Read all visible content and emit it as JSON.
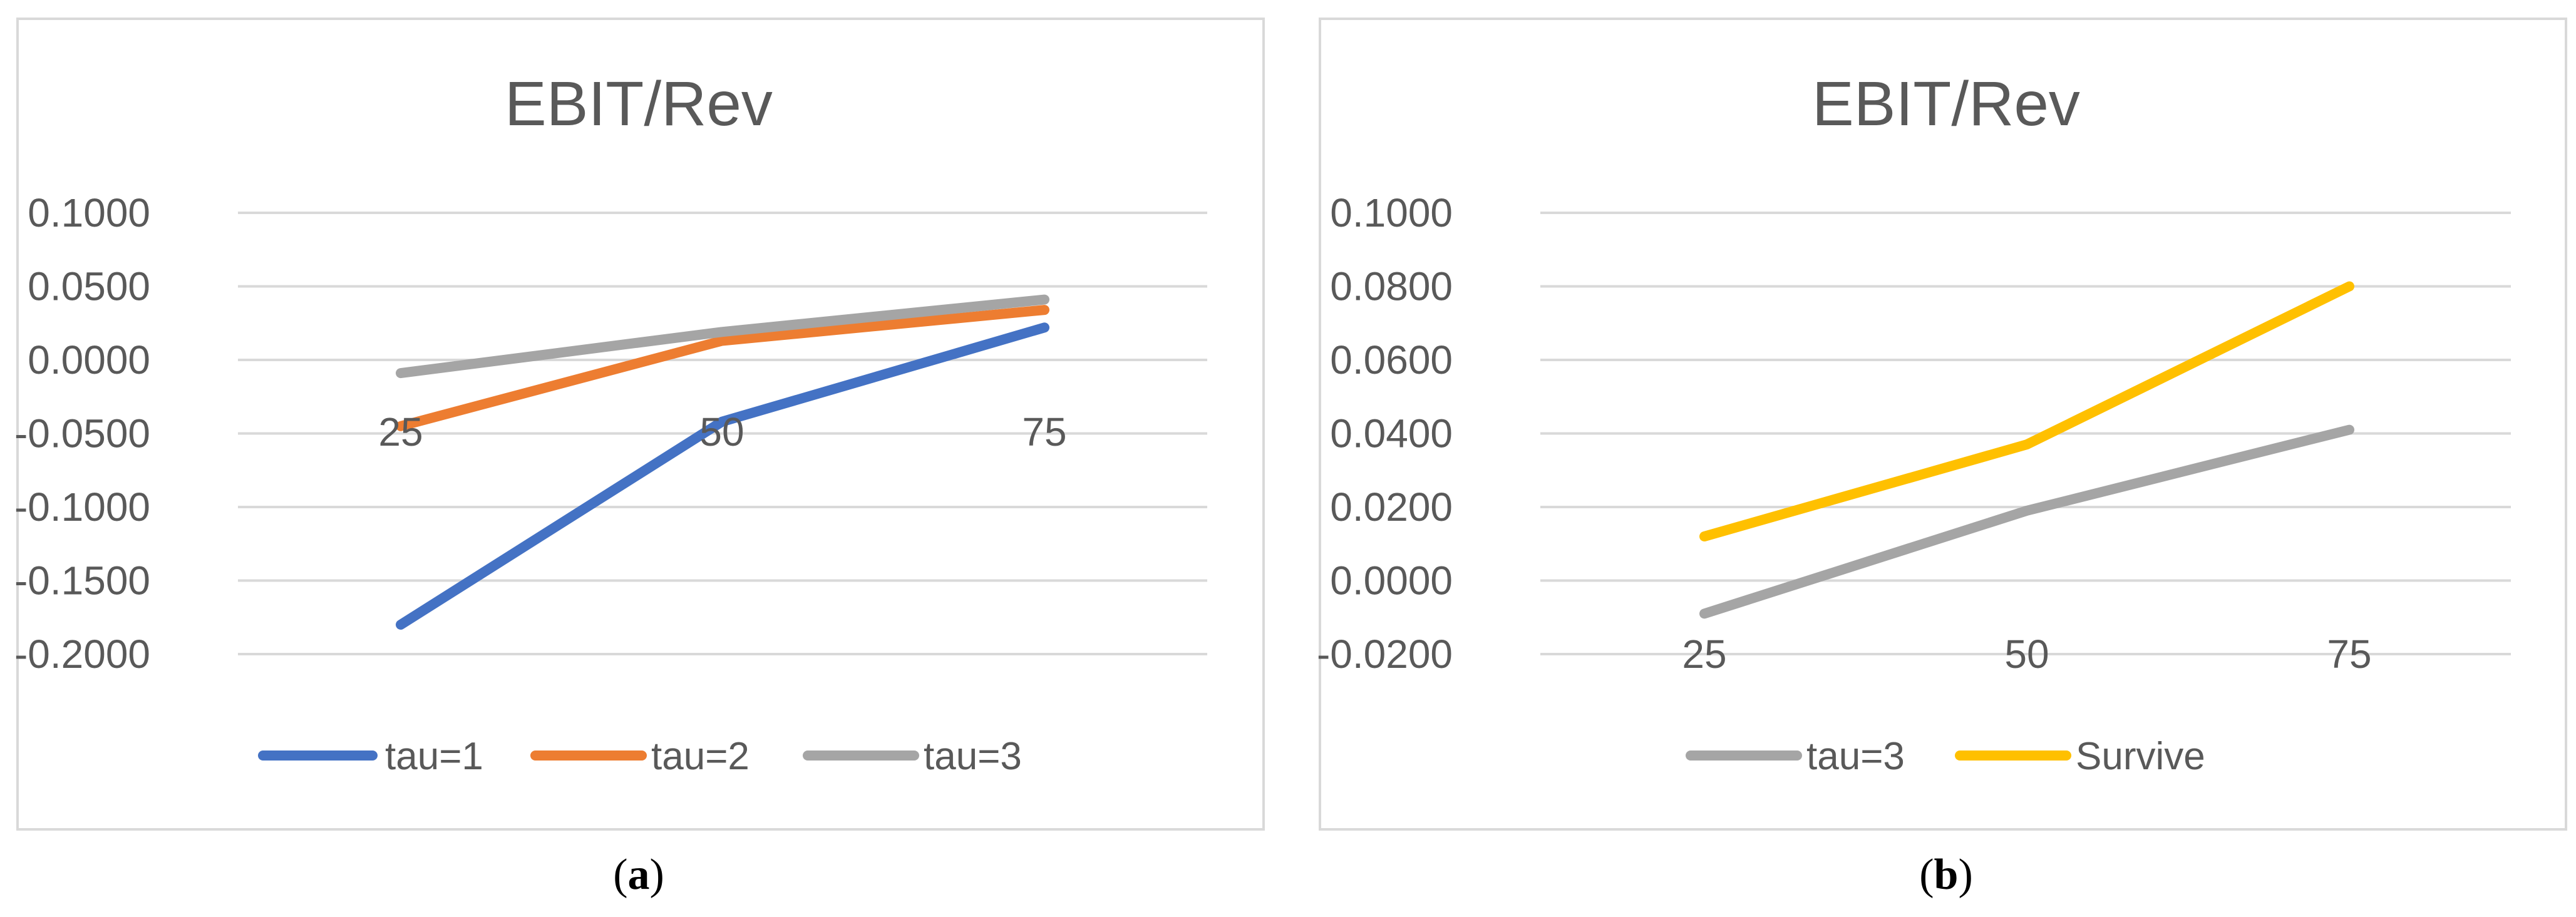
{
  "chart_data": [
    {
      "type": "line",
      "panel_label": "a",
      "title": "EBIT/Rev",
      "xlabel": "",
      "ylabel": "",
      "categories": [
        "25",
        "50",
        "75"
      ],
      "yticks": [
        "0.1000",
        "0.0500",
        "0.0000",
        "-0.0500",
        "-0.1000",
        "-0.1500",
        "-0.2000"
      ],
      "ylim": [
        -0.2,
        0.1
      ],
      "grid": true,
      "legend_position": "bottom",
      "series": [
        {
          "name": "tau=1",
          "color": "#4472C4",
          "values": [
            -0.18,
            -0.042,
            0.022
          ]
        },
        {
          "name": "tau=2",
          "color": "#ED7D31",
          "values": [
            -0.045,
            0.013,
            0.034
          ]
        },
        {
          "name": "tau=3",
          "color": "#A5A5A5",
          "values": [
            -0.009,
            0.019,
            0.041
          ]
        }
      ]
    },
    {
      "type": "line",
      "panel_label": "b",
      "title": "EBIT/Rev",
      "xlabel": "",
      "ylabel": "",
      "categories": [
        "25",
        "50",
        "75"
      ],
      "yticks": [
        "0.1000",
        "0.0800",
        "0.0600",
        "0.0400",
        "0.0200",
        "0.0000",
        "-0.0200"
      ],
      "ylim": [
        -0.02,
        0.1
      ],
      "grid": true,
      "legend_position": "bottom",
      "series": [
        {
          "name": "tau=3",
          "color": "#A5A5A5",
          "values": [
            -0.009,
            0.019,
            0.041
          ]
        },
        {
          "name": "Survive",
          "color": "#FFC000",
          "values": [
            0.012,
            0.037,
            0.08
          ]
        }
      ]
    }
  ]
}
